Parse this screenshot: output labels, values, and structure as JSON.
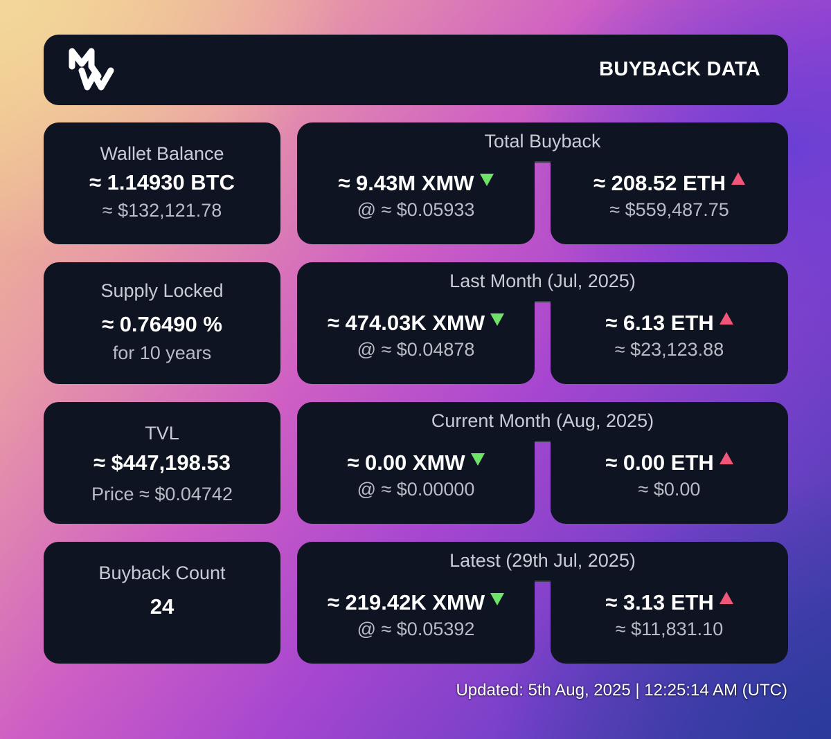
{
  "header": {
    "title": "BUYBACK DATA",
    "logo_icon": "mw-logo-icon"
  },
  "left_cards": [
    {
      "label": "Wallet Balance",
      "value": "≈ 1.14930 BTC",
      "sub": "≈ $132,121.78"
    },
    {
      "label": "Supply Locked",
      "value": "≈ 0.76490 %",
      "sub": "for 10 years"
    },
    {
      "label": "TVL",
      "value": "≈ $447,198.53",
      "sub": "Price ≈ $0.04742"
    },
    {
      "label": "Buyback Count",
      "value": "24",
      "sub": ""
    }
  ],
  "groups": [
    {
      "title": "Total Buyback",
      "xmw": {
        "amount": "≈ 9.43M XMW",
        "price": "@ ≈ $0.05933"
      },
      "eth": {
        "amount": "≈ 208.52 ETH",
        "usd": "≈ $559,487.75"
      }
    },
    {
      "title": "Last Month (Jul, 2025)",
      "xmw": {
        "amount": "≈ 474.03K XMW",
        "price": "@ ≈ $0.04878"
      },
      "eth": {
        "amount": "≈ 6.13 ETH",
        "usd": "≈ $23,123.88"
      }
    },
    {
      "title": "Current Month (Aug, 2025)",
      "xmw": {
        "amount": "≈ 0.00 XMW",
        "price": "@ ≈ $0.00000"
      },
      "eth": {
        "amount": "≈ 0.00 ETH",
        "usd": "≈ $0.00"
      }
    },
    {
      "title": "Latest (29th Jul, 2025)",
      "xmw": {
        "amount": "≈ 219.42K XMW",
        "price": "@ ≈ $0.05392"
      },
      "eth": {
        "amount": "≈ 3.13 ETH",
        "usd": "≈ $11,831.10"
      }
    }
  ],
  "icons": {
    "down": "arrow-down-icon",
    "up": "arrow-up-icon"
  },
  "colors": {
    "card_bg": "#0f1422",
    "down_arrow": "#6fe26a",
    "up_arrow": "#f0557a"
  },
  "footer": {
    "updated": "Updated: 5th Aug, 2025 | 12:25:14 AM (UTC)"
  }
}
